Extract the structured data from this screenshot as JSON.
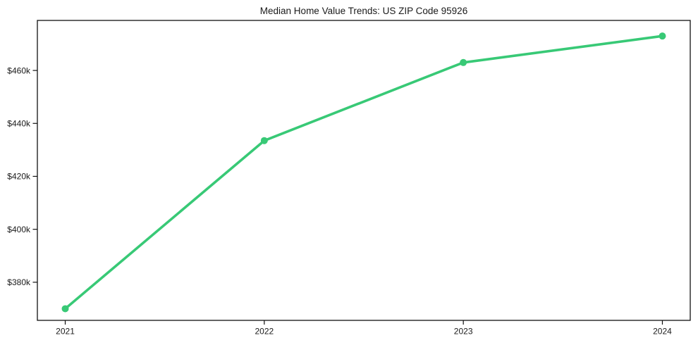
{
  "chart_data": {
    "type": "line",
    "title": "Median Home Value Trends: US ZIP Code 95926",
    "xlabel": "",
    "ylabel": "",
    "categories": [
      "2021",
      "2022",
      "2023",
      "2024"
    ],
    "x": [
      2021,
      2022,
      2023,
      2024
    ],
    "values": [
      370000,
      433500,
      463000,
      473000
    ],
    "y_tick_values": [
      380000,
      400000,
      420000,
      440000,
      460000
    ],
    "y_tick_labels": [
      "$380k",
      "$400k",
      "$420k",
      "$440k",
      "$460k"
    ],
    "xlim": [
      2020.86,
      2024.14
    ],
    "ylim": [
      365600,
      478900
    ],
    "grid": false,
    "legend_position": "none",
    "colors": {
      "line": "#38c976",
      "marker": "#38c976",
      "text": "#1a1a1a",
      "frame": "#111111",
      "background": "#ffffff"
    }
  }
}
